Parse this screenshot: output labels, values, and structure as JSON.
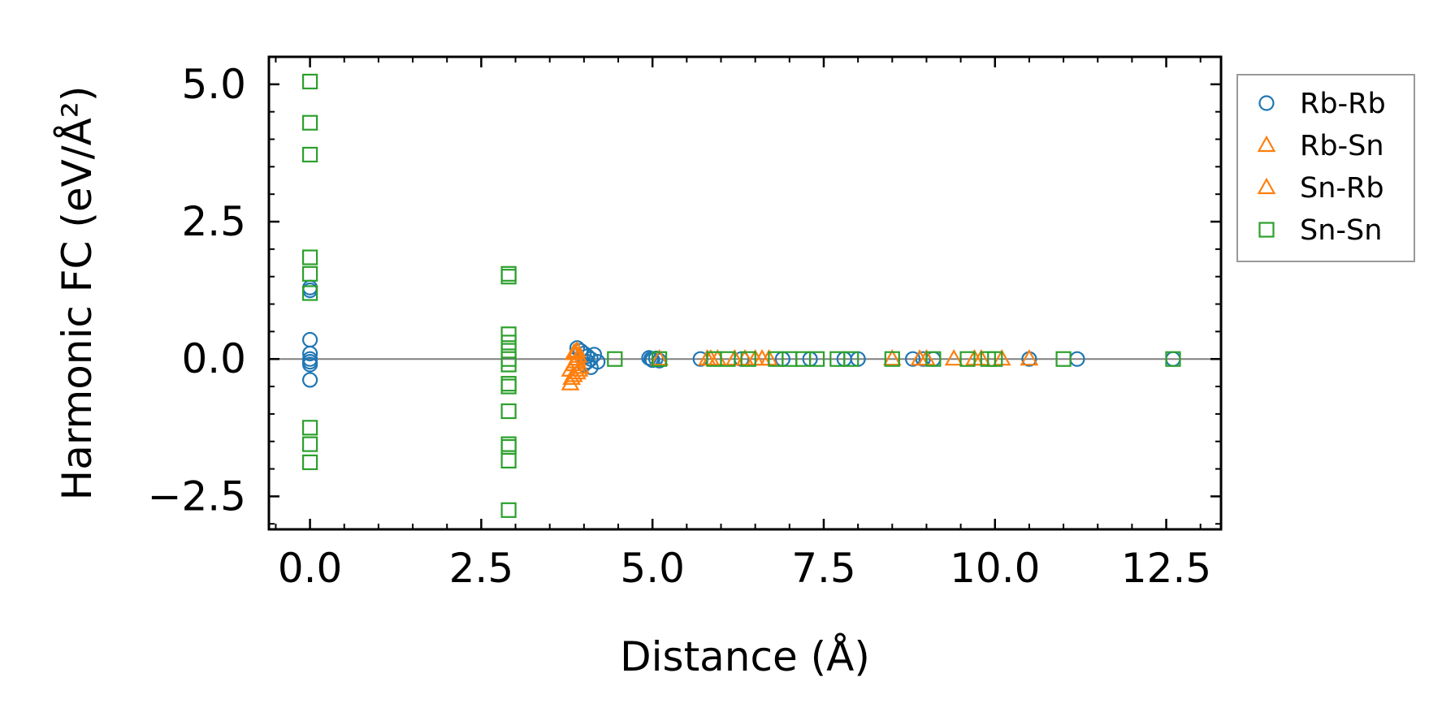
{
  "chart_data": {
    "type": "scatter",
    "title": "",
    "xlabel": "Distance (Å)",
    "ylabel": "Harmonic FC (eV/Å²)",
    "xlim": [
      -0.6,
      13.3
    ],
    "ylim": [
      -3.1,
      5.5
    ],
    "xticks": [
      0.0,
      2.5,
      5.0,
      7.5,
      10.0,
      12.5
    ],
    "xtick_labels": [
      "0.0",
      "2.5",
      "5.0",
      "7.5",
      "10.0",
      "12.5"
    ],
    "yticks": [
      -2.5,
      0.0,
      2.5,
      5.0
    ],
    "ytick_labels": [
      "−2.5",
      "0.0",
      "2.5",
      "5.0"
    ],
    "reference_line_y": 0.0,
    "legend_location": "outside right, top",
    "series": [
      {
        "name": "Rb-Rb",
        "marker": "circle",
        "color": "#1f77b4",
        "points": [
          [
            0.0,
            1.3
          ],
          [
            0.0,
            1.25
          ],
          [
            0.0,
            0.35
          ],
          [
            0.0,
            0.1
          ],
          [
            0.0,
            0.0
          ],
          [
            0.0,
            -0.05
          ],
          [
            0.0,
            -0.1
          ],
          [
            0.0,
            -0.38
          ],
          [
            3.9,
            0.2
          ],
          [
            3.95,
            0.15
          ],
          [
            4.0,
            0.1
          ],
          [
            4.05,
            0.05
          ],
          [
            4.1,
            0.0
          ],
          [
            4.05,
            -0.05
          ],
          [
            4.0,
            -0.1
          ],
          [
            4.1,
            -0.15
          ],
          [
            4.15,
            0.08
          ],
          [
            4.2,
            -0.05
          ],
          [
            4.95,
            0.02
          ],
          [
            5.0,
            -0.02
          ],
          [
            4.98,
            0.0
          ],
          [
            5.05,
            0.01
          ],
          [
            5.1,
            -0.03
          ],
          [
            5.7,
            0.0
          ],
          [
            6.3,
            0.0
          ],
          [
            6.9,
            0.0
          ],
          [
            7.3,
            0.0
          ],
          [
            7.8,
            0.0
          ],
          [
            8.0,
            0.0
          ],
          [
            8.8,
            0.0
          ],
          [
            8.95,
            0.0
          ],
          [
            9.1,
            0.0
          ],
          [
            10.5,
            0.0
          ],
          [
            11.2,
            0.0
          ],
          [
            12.6,
            0.0
          ]
        ]
      },
      {
        "name": "Rb-Sn",
        "marker": "triangle",
        "color": "#ff7f0e",
        "points": [
          [
            3.8,
            -0.45
          ],
          [
            3.85,
            -0.3
          ],
          [
            3.8,
            -0.2
          ],
          [
            3.85,
            -0.1
          ],
          [
            3.9,
            0.0
          ],
          [
            3.85,
            0.1
          ],
          [
            3.9,
            0.15
          ],
          [
            3.95,
            -0.15
          ],
          [
            3.9,
            -0.25
          ],
          [
            5.1,
            0.0
          ],
          [
            5.8,
            0.0
          ],
          [
            5.95,
            0.0
          ],
          [
            6.35,
            0.0
          ],
          [
            6.5,
            0.0
          ],
          [
            6.7,
            0.0
          ],
          [
            8.5,
            0.0
          ],
          [
            8.9,
            0.0
          ],
          [
            9.4,
            0.0
          ],
          [
            9.7,
            0.0
          ],
          [
            10.1,
            0.0
          ],
          [
            10.5,
            0.0
          ]
        ]
      },
      {
        "name": "Sn-Rb",
        "marker": "triangle",
        "color": "#ff7f0e",
        "points": [
          [
            3.82,
            -0.35
          ],
          [
            3.88,
            -0.05
          ],
          [
            3.92,
            0.05
          ],
          [
            3.87,
            0.12
          ],
          [
            3.93,
            -0.2
          ],
          [
            5.85,
            0.0
          ],
          [
            6.2,
            0.0
          ],
          [
            6.6,
            0.0
          ],
          [
            9.0,
            0.0
          ],
          [
            9.8,
            0.0
          ]
        ]
      },
      {
        "name": "Sn-Sn",
        "marker": "square",
        "color": "#2ca02c",
        "points": [
          [
            0.0,
            5.05
          ],
          [
            0.0,
            4.3
          ],
          [
            0.0,
            3.72
          ],
          [
            0.0,
            1.85
          ],
          [
            0.0,
            1.55
          ],
          [
            0.0,
            1.2
          ],
          [
            0.0,
            -1.25
          ],
          [
            0.0,
            -1.55
          ],
          [
            0.0,
            -1.88
          ],
          [
            2.9,
            1.55
          ],
          [
            2.9,
            1.5
          ],
          [
            2.9,
            0.45
          ],
          [
            2.9,
            0.3
          ],
          [
            2.9,
            0.15
          ],
          [
            2.9,
            0.0
          ],
          [
            2.9,
            -0.1
          ],
          [
            2.9,
            -0.45
          ],
          [
            2.9,
            -0.5
          ],
          [
            2.9,
            -0.95
          ],
          [
            2.9,
            -1.55
          ],
          [
            2.9,
            -1.6
          ],
          [
            2.9,
            -1.85
          ],
          [
            2.9,
            -2.75
          ],
          [
            4.45,
            0.0
          ],
          [
            5.1,
            0.0
          ],
          [
            5.9,
            0.0
          ],
          [
            6.1,
            0.0
          ],
          [
            6.4,
            0.0
          ],
          [
            6.8,
            0.0
          ],
          [
            7.0,
            0.0
          ],
          [
            7.2,
            0.0
          ],
          [
            7.4,
            0.0
          ],
          [
            7.7,
            0.0
          ],
          [
            7.9,
            0.0
          ],
          [
            8.5,
            0.0
          ],
          [
            9.1,
            0.0
          ],
          [
            9.6,
            0.0
          ],
          [
            9.9,
            0.0
          ],
          [
            10.0,
            0.0
          ],
          [
            11.0,
            0.0
          ],
          [
            12.6,
            0.0
          ]
        ]
      }
    ]
  }
}
